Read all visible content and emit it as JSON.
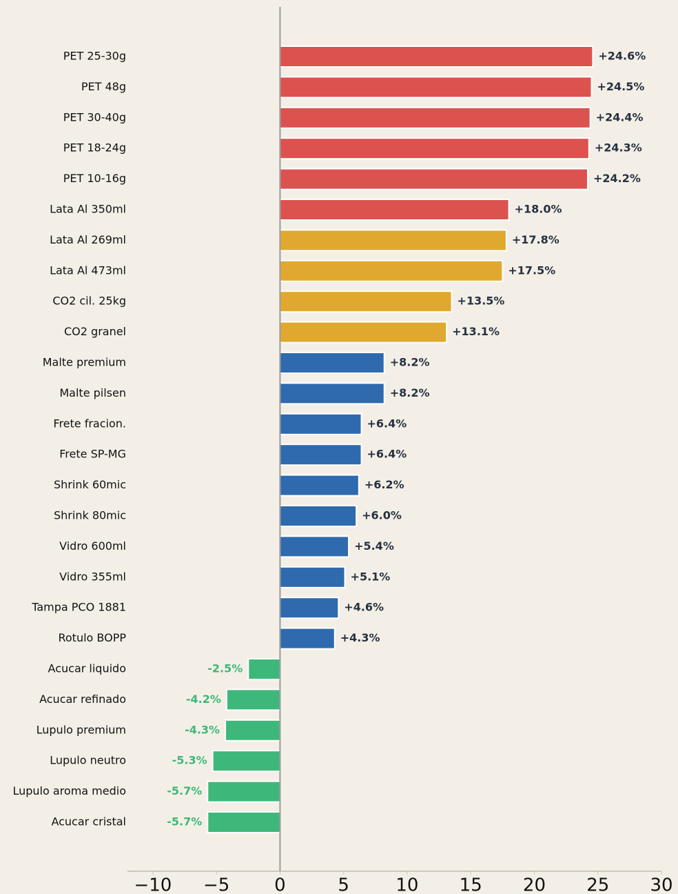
{
  "chart_data": {
    "type": "barh",
    "categories": [
      "PET 25-30g",
      "PET 48g",
      "PET 30-40g",
      "PET 18-24g",
      "PET 10-16g",
      "Lata Al 350ml",
      "Lata Al 269ml",
      "Lata Al 473ml",
      "CO2 cil. 25kg",
      "CO2 granel",
      "Malte premium",
      "Malte pilsen",
      "Frete fracion.",
      "Frete SP-MG",
      "Shrink 60mic",
      "Shrink 80mic",
      "Vidro 600ml",
      "Vidro 355ml",
      "Tampa PCO 1881",
      "Rotulo BOPP",
      "Acucar liquido",
      "Acucar refinado",
      "Lupulo premium",
      "Lupulo neutro",
      "Lupulo aroma medio",
      "Acucar cristal"
    ],
    "values": [
      24.6,
      24.5,
      24.4,
      24.3,
      24.2,
      18.0,
      17.8,
      17.5,
      13.5,
      13.1,
      8.2,
      8.2,
      6.4,
      6.4,
      6.2,
      6.0,
      5.4,
      5.1,
      4.6,
      4.3,
      -2.5,
      -4.2,
      -4.3,
      -5.3,
      -5.7,
      -5.7
    ],
    "value_labels": [
      "+24.6%",
      "+24.5%",
      "+24.4%",
      "+24.3%",
      "+24.2%",
      "+18.0%",
      "+17.8%",
      "+17.5%",
      "+13.5%",
      "+13.1%",
      "+8.2%",
      "+8.2%",
      "+6.4%",
      "+6.4%",
      "+6.2%",
      "+6.0%",
      "+5.4%",
      "+5.1%",
      "+4.6%",
      "+4.3%",
      "-2.5%",
      "-4.2%",
      "-4.3%",
      "-5.3%",
      "-5.7%",
      "-5.7%"
    ],
    "colors": [
      "#dc524f",
      "#dc524f",
      "#dc524f",
      "#dc524f",
      "#dc524f",
      "#dc524f",
      "#e0a82e",
      "#e0a82e",
      "#e0a82e",
      "#e0a82e",
      "#2e6aad",
      "#2e6aad",
      "#2e6aad",
      "#2e6aad",
      "#2e6aad",
      "#2e6aad",
      "#2e6aad",
      "#2e6aad",
      "#2e6aad",
      "#2e6aad",
      "#3db87a",
      "#3db87a",
      "#3db87a",
      "#3db87a",
      "#3db87a",
      "#3db87a"
    ],
    "xlim": [
      -12,
      30
    ],
    "xticks": [
      {
        "value": -10,
        "label": "−10"
      },
      {
        "value": -5,
        "label": "−5"
      },
      0,
      5,
      10,
      15,
      20,
      25,
      30
    ]
  }
}
